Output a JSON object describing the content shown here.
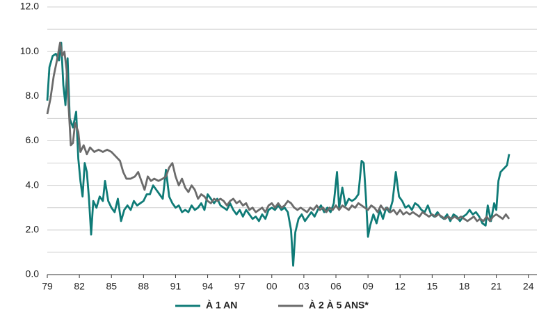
{
  "chart_data": {
    "type": "line",
    "xlim": [
      1979,
      2024.8
    ],
    "xticks": [
      {
        "value": 1979,
        "label": "79"
      },
      {
        "value": 1982,
        "label": "82"
      },
      {
        "value": 1985,
        "label": "85"
      },
      {
        "value": 1988,
        "label": "88"
      },
      {
        "value": 1991,
        "label": "91"
      },
      {
        "value": 1994,
        "label": "94"
      },
      {
        "value": 1997,
        "label": "97"
      },
      {
        "value": 2000,
        "label": "00"
      },
      {
        "value": 2003,
        "label": "03"
      },
      {
        "value": 2006,
        "label": "06"
      },
      {
        "value": 2009,
        "label": "09"
      },
      {
        "value": 2012,
        "label": "12"
      },
      {
        "value": 2015,
        "label": "15"
      },
      {
        "value": 2018,
        "label": "18"
      },
      {
        "value": 2021,
        "label": "21"
      },
      {
        "value": 2024,
        "label": "24"
      }
    ],
    "ylim": [
      0,
      12
    ],
    "yticks": [
      {
        "value": 0,
        "label": "0.0"
      },
      {
        "value": 2,
        "label": "2.0"
      },
      {
        "value": 4,
        "label": "4.0"
      },
      {
        "value": 6,
        "label": "6.0"
      },
      {
        "value": 8,
        "label": "8.0"
      },
      {
        "value": 10,
        "label": "10.0"
      },
      {
        "value": 12,
        "label": "12.0"
      }
    ],
    "ygrid": [
      1,
      3,
      5,
      7,
      9,
      11
    ],
    "grid": true,
    "legend": "bottom",
    "series": [
      {
        "name": "À 1 AN",
        "color": "#0f7b77",
        "x": [
          1979.0,
          1979.2,
          1979.5,
          1979.8,
          1980.1,
          1980.3,
          1980.5,
          1980.7,
          1980.9,
          1981.1,
          1981.4,
          1981.7,
          1981.9,
          1982.1,
          1982.3,
          1982.5,
          1982.7,
          1982.9,
          1983.1,
          1983.3,
          1983.6,
          1983.9,
          1984.2,
          1984.4,
          1984.7,
          1985.0,
          1985.3,
          1985.6,
          1985.9,
          1986.2,
          1986.5,
          1986.8,
          1987.1,
          1987.4,
          1987.7,
          1988.0,
          1988.3,
          1988.6,
          1988.9,
          1989.2,
          1989.5,
          1989.8,
          1990.1,
          1990.4,
          1990.7,
          1991.0,
          1991.3,
          1991.6,
          1991.9,
          1992.2,
          1992.5,
          1992.8,
          1993.1,
          1993.4,
          1993.7,
          1994.0,
          1994.3,
          1994.6,
          1994.9,
          1995.2,
          1995.5,
          1995.8,
          1996.1,
          1996.4,
          1996.7,
          1997.0,
          1997.3,
          1997.6,
          1997.9,
          1998.2,
          1998.5,
          1998.8,
          1999.1,
          1999.4,
          1999.7,
          2000.0,
          2000.3,
          2000.6,
          2000.9,
          2001.2,
          2001.5,
          2001.8,
          2002.0,
          2002.2,
          2002.5,
          2002.8,
          2003.1,
          2003.4,
          2003.7,
          2004.0,
          2004.3,
          2004.6,
          2004.9,
          2005.2,
          2005.5,
          2005.8,
          2006.1,
          2006.3,
          2006.6,
          2006.9,
          2007.2,
          2007.5,
          2007.8,
          2008.1,
          2008.4,
          2008.6,
          2008.8,
          2009.0,
          2009.2,
          2009.5,
          2009.8,
          2010.1,
          2010.4,
          2010.7,
          2011.0,
          2011.3,
          2011.6,
          2011.9,
          2012.2,
          2012.5,
          2012.8,
          2013.1,
          2013.4,
          2013.7,
          2014.0,
          2014.3,
          2014.6,
          2014.9,
          2015.2,
          2015.5,
          2015.8,
          2016.1,
          2016.4,
          2016.7,
          2017.0,
          2017.3,
          2017.6,
          2017.9,
          2018.2,
          2018.5,
          2018.8,
          2019.1,
          2019.4,
          2019.7,
          2020.0,
          2020.2,
          2020.5,
          2020.8,
          2021.0,
          2021.2,
          2021.4,
          2021.6,
          2021.8,
          2022.0,
          2022.2
        ],
        "values": [
          7.8,
          9.3,
          9.8,
          9.9,
          9.6,
          10.4,
          8.5,
          7.6,
          9.7,
          7.0,
          6.6,
          7.3,
          5.2,
          4.2,
          3.5,
          5.0,
          4.6,
          3.4,
          1.8,
          3.3,
          3.0,
          3.5,
          3.3,
          4.2,
          3.3,
          3.0,
          2.8,
          3.4,
          2.4,
          2.9,
          3.1,
          2.9,
          3.3,
          3.1,
          3.2,
          3.3,
          3.6,
          3.6,
          4.0,
          3.8,
          3.6,
          3.4,
          4.7,
          3.5,
          3.2,
          3.0,
          3.1,
          2.8,
          2.9,
          2.8,
          3.1,
          2.9,
          3.0,
          3.2,
          2.9,
          3.6,
          3.4,
          3.2,
          3.4,
          3.1,
          3.0,
          2.9,
          3.2,
          2.9,
          2.7,
          2.9,
          2.6,
          2.9,
          2.7,
          2.5,
          2.6,
          2.4,
          2.7,
          2.5,
          2.9,
          3.0,
          2.9,
          3.1,
          2.9,
          3.0,
          2.8,
          2.0,
          0.4,
          1.9,
          2.5,
          2.7,
          2.4,
          2.6,
          2.8,
          2.6,
          2.9,
          3.1,
          2.8,
          3.0,
          2.8,
          3.2,
          4.6,
          3.0,
          3.9,
          3.1,
          3.4,
          3.3,
          3.4,
          3.6,
          5.1,
          5.0,
          3.5,
          1.7,
          2.2,
          2.7,
          2.3,
          2.9,
          2.5,
          3.0,
          2.8,
          3.3,
          4.6,
          3.5,
          3.3,
          3.0,
          3.1,
          2.9,
          3.2,
          3.1,
          2.9,
          2.8,
          3.1,
          2.7,
          2.6,
          2.8,
          2.6,
          2.5,
          2.7,
          2.4,
          2.7,
          2.6,
          2.4,
          2.6,
          2.7,
          2.9,
          2.7,
          2.8,
          2.6,
          2.3,
          2.2,
          3.1,
          2.4,
          3.2,
          2.9,
          4.2,
          4.6,
          4.7,
          4.8,
          4.9,
          5.4
        ]
      },
      {
        "name": "À 2 À 5 ANS*",
        "color": "#6b6b6b",
        "x": [
          1979.0,
          1979.3,
          1979.6,
          1979.9,
          1980.2,
          1980.4,
          1980.6,
          1980.8,
          1981.0,
          1981.2,
          1981.4,
          1981.6,
          1981.9,
          1982.1,
          1982.4,
          1982.7,
          1983.0,
          1983.4,
          1983.8,
          1984.2,
          1984.6,
          1985.0,
          1985.4,
          1985.8,
          1986.1,
          1986.4,
          1986.8,
          1987.2,
          1987.5,
          1987.8,
          1988.1,
          1988.4,
          1988.7,
          1989.0,
          1989.4,
          1989.8,
          1990.1,
          1990.4,
          1990.7,
          1991.0,
          1991.3,
          1991.6,
          1991.9,
          1992.2,
          1992.5,
          1992.8,
          1993.1,
          1993.4,
          1993.7,
          1994.0,
          1994.3,
          1994.6,
          1994.9,
          1995.2,
          1995.5,
          1995.8,
          1996.1,
          1996.4,
          1996.7,
          1997.0,
          1997.3,
          1997.6,
          1997.9,
          1998.2,
          1998.5,
          1998.8,
          1999.1,
          1999.4,
          1999.7,
          2000.0,
          2000.3,
          2000.6,
          2000.9,
          2001.2,
          2001.5,
          2001.8,
          2002.1,
          2002.4,
          2002.7,
          2003.0,
          2003.3,
          2003.6,
          2003.9,
          2004.2,
          2004.5,
          2004.8,
          2005.1,
          2005.4,
          2005.7,
          2006.0,
          2006.3,
          2006.6,
          2006.9,
          2007.2,
          2007.5,
          2007.8,
          2008.1,
          2008.4,
          2008.7,
          2009.0,
          2009.3,
          2009.6,
          2009.9,
          2010.2,
          2010.5,
          2010.8,
          2011.1,
          2011.4,
          2011.7,
          2012.0,
          2012.3,
          2012.6,
          2012.9,
          2013.2,
          2013.5,
          2013.8,
          2014.1,
          2014.4,
          2014.7,
          2015.0,
          2015.3,
          2015.6,
          2015.9,
          2016.2,
          2016.5,
          2016.8,
          2017.1,
          2017.4,
          2017.7,
          2018.0,
          2018.3,
          2018.6,
          2018.9,
          2019.2,
          2019.5,
          2019.8,
          2020.1,
          2020.4,
          2020.7,
          2021.0,
          2021.3,
          2021.6,
          2021.9,
          2022.2
        ],
        "values": [
          7.2,
          7.9,
          8.9,
          9.6,
          10.4,
          9.8,
          10.0,
          9.2,
          7.5,
          5.8,
          5.9,
          6.8,
          6.4,
          5.5,
          5.8,
          5.4,
          5.7,
          5.5,
          5.6,
          5.5,
          5.6,
          5.5,
          5.3,
          5.1,
          4.6,
          4.3,
          4.3,
          4.4,
          4.6,
          4.2,
          3.8,
          4.4,
          4.2,
          4.3,
          4.2,
          4.3,
          4.4,
          4.8,
          5.0,
          4.4,
          4.0,
          4.3,
          3.9,
          3.7,
          4.0,
          3.8,
          3.4,
          3.6,
          3.5,
          3.3,
          3.2,
          3.4,
          3.3,
          3.4,
          3.3,
          3.1,
          3.3,
          3.4,
          3.2,
          3.3,
          3.1,
          3.2,
          2.9,
          3.0,
          2.8,
          2.9,
          3.0,
          2.8,
          3.1,
          3.2,
          3.0,
          3.2,
          3.0,
          3.1,
          3.3,
          3.2,
          3.0,
          2.9,
          3.0,
          2.9,
          2.8,
          3.0,
          2.9,
          3.1,
          2.9,
          3.0,
          2.8,
          3.0,
          2.9,
          3.1,
          2.9,
          3.1,
          3.0,
          2.9,
          3.1,
          3.0,
          3.2,
          3.1,
          3.0,
          2.9,
          3.1,
          3.0,
          2.8,
          3.1,
          2.9,
          3.0,
          2.8,
          2.9,
          2.7,
          2.9,
          2.7,
          2.8,
          2.7,
          2.8,
          2.7,
          2.6,
          2.8,
          2.7,
          2.6,
          2.7,
          2.6,
          2.7,
          2.6,
          2.5,
          2.6,
          2.5,
          2.6,
          2.5,
          2.6,
          2.5,
          2.4,
          2.5,
          2.6,
          2.4,
          2.5,
          2.4,
          2.6,
          2.4,
          2.6,
          2.7,
          2.6,
          2.5,
          2.7,
          2.5
        ]
      }
    ]
  }
}
